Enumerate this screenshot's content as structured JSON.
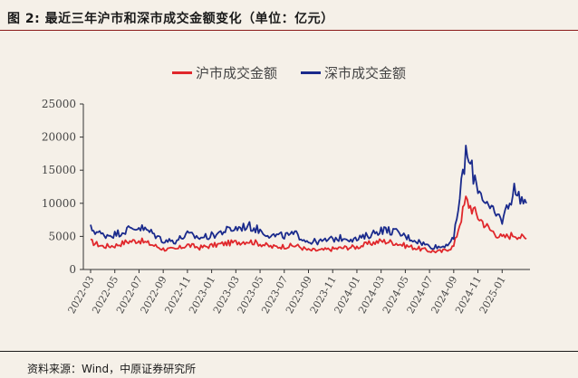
{
  "header": {
    "title": "图 2:  最近三年沪市和深市成交金额变化（单位：亿元）"
  },
  "source": "资料来源：Wind，中原证券研究所",
  "colors": {
    "sh": "#e0272b",
    "sz": "#1a2a8c",
    "axis": "#333333",
    "background": "#f5f0e8"
  },
  "chart_data": {
    "type": "line",
    "title": "",
    "xlabel": "",
    "ylabel": "",
    "ylim": [
      0,
      25000
    ],
    "y_ticks": [
      0,
      5000,
      10000,
      15000,
      20000,
      25000
    ],
    "x_ticks": [
      "2022-03",
      "2022-05",
      "2022-07",
      "2022-09",
      "2022-11",
      "2023-01",
      "2023-03",
      "2023-05",
      "2023-07",
      "2023-09",
      "2023-11",
      "2024-01",
      "2024-03",
      "2024-05",
      "2024-07",
      "2024-09",
      "2024-11",
      "2025-01"
    ],
    "legend_position": "top",
    "grid": false,
    "x": [
      "2022-03",
      "2022-04",
      "2022-05",
      "2022-06",
      "2022-07",
      "2022-08",
      "2022-09",
      "2022-10",
      "2022-11",
      "2022-12",
      "2023-01",
      "2023-02",
      "2023-03",
      "2023-04",
      "2023-05",
      "2023-06",
      "2023-07",
      "2023-08",
      "2023-09",
      "2023-10",
      "2023-11",
      "2023-12",
      "2024-01",
      "2024-02",
      "2024-03",
      "2024-04",
      "2024-05",
      "2024-06",
      "2024-07",
      "2024-08",
      "2024-09",
      "2024-10",
      "2024-11",
      "2024-12",
      "2025-01",
      "2025-02",
      "2025-03"
    ],
    "series": [
      {
        "name": "沪市成交金额",
        "color": "#e0272b",
        "values": [
          4200,
          3500,
          3600,
          4200,
          4400,
          3800,
          3100,
          3000,
          3700,
          3300,
          3600,
          3900,
          4100,
          4300,
          3900,
          3400,
          3500,
          3600,
          2900,
          2900,
          3100,
          3300,
          3400,
          3900,
          4300,
          4100,
          3600,
          3200,
          2800,
          2700,
          3500,
          10500,
          8000,
          6000,
          4800,
          5300,
          4600
        ]
      },
      {
        "name": "深市成交金额",
        "color": "#1a2a8c",
        "values": [
          6200,
          5200,
          5300,
          6000,
          6400,
          5600,
          4400,
          4300,
          5300,
          4800,
          5100,
          5800,
          6200,
          6600,
          5900,
          5100,
          5100,
          5300,
          4200,
          4200,
          4600,
          4800,
          4500,
          5200,
          6000,
          5800,
          5000,
          4300,
          3500,
          3400,
          4500,
          17500,
          12500,
          9000,
          7500,
          12000,
          10000
        ]
      }
    ]
  }
}
